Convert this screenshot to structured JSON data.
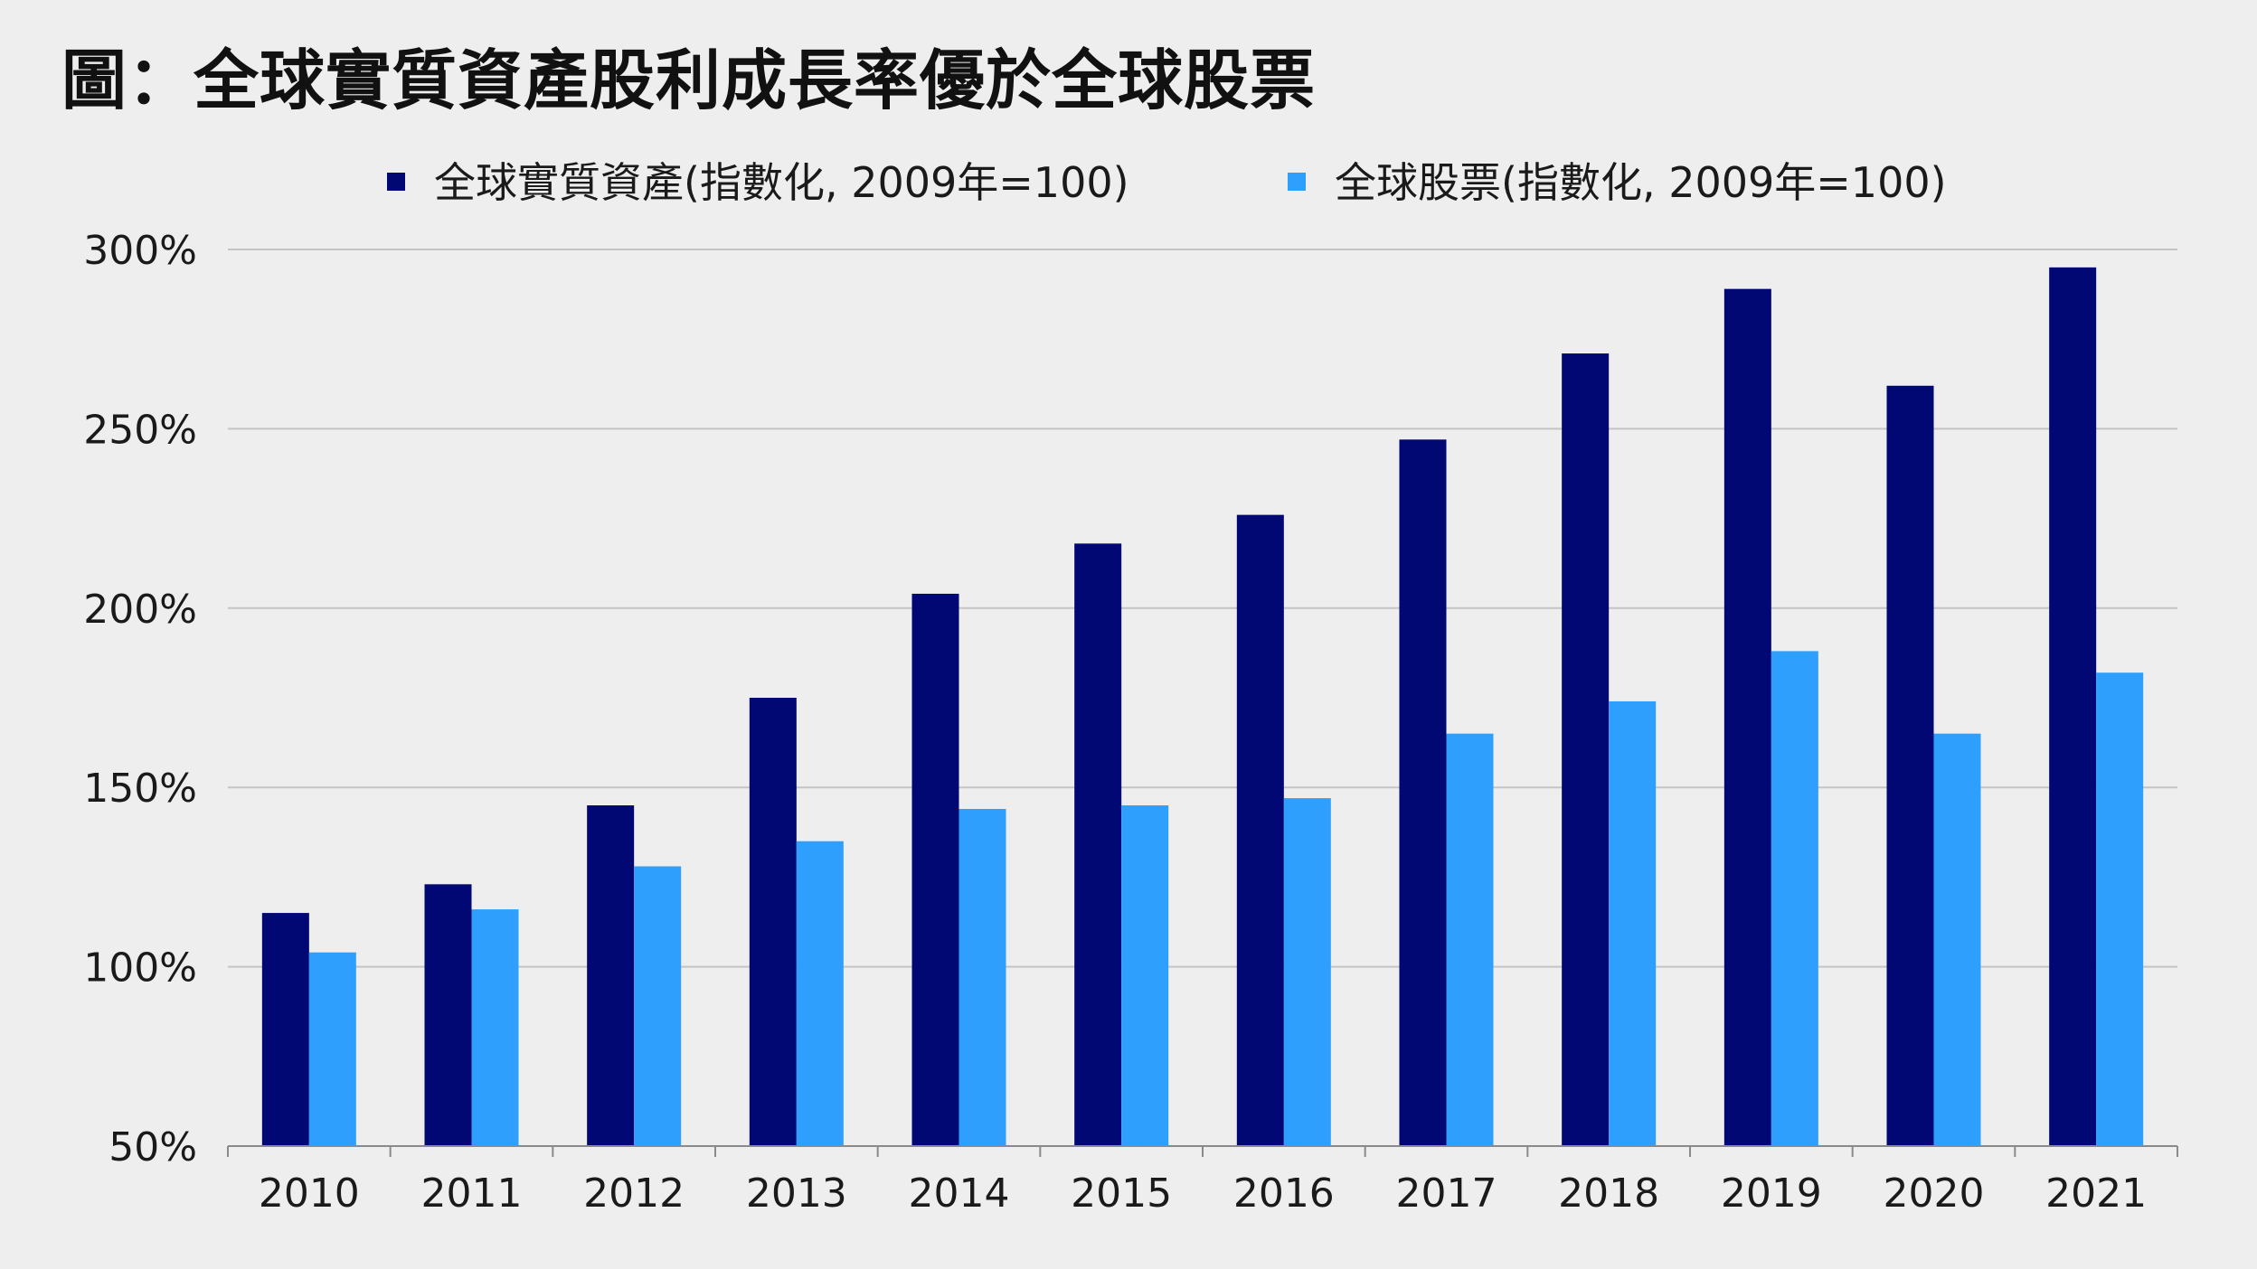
{
  "title": "圖：全球實質資產股利成長率優於全球股票",
  "chart_data": {
    "type": "bar",
    "title": "圖：全球實質資產股利成長率優於全球股票",
    "categories": [
      "2010",
      "2011",
      "2012",
      "2013",
      "2014",
      "2015",
      "2016",
      "2017",
      "2018",
      "2019",
      "2020",
      "2021"
    ],
    "series": [
      {
        "name": "全球實質資產(指數化, 2009年=100)",
        "color": "#020873",
        "values": [
          115,
          123,
          145,
          175,
          204,
          218,
          226,
          247,
          271,
          289,
          262,
          295
        ]
      },
      {
        "name": "全球股票(指數化, 2009年=100)",
        "color": "#2e9ffc",
        "values": [
          104,
          116,
          128,
          135,
          144,
          145,
          147,
          165,
          174,
          188,
          165,
          182
        ]
      }
    ],
    "yticks": [
      "50%",
      "100%",
      "150%",
      "200%",
      "250%",
      "300%"
    ],
    "ytick_values": [
      50,
      100,
      150,
      200,
      250,
      300
    ],
    "ylim": [
      50,
      300
    ],
    "xlabel": "",
    "ylabel": "",
    "grid": true,
    "legend": "top-center"
  }
}
